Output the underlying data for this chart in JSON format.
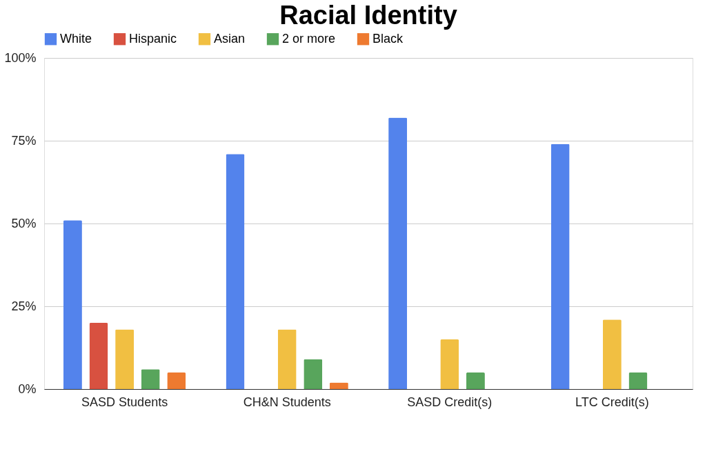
{
  "chart_data": {
    "type": "bar",
    "title": "Racial Identity",
    "categories": [
      "SASD Students",
      "CH&N Students",
      "SASD Credit(s)",
      "LTC Credit(s)"
    ],
    "series": [
      {
        "name": "White",
        "color": "#5383ec",
        "values": [
          51,
          71,
          82,
          74
        ]
      },
      {
        "name": "Hispanic",
        "color": "#d85140",
        "values": [
          20,
          null,
          null,
          null
        ]
      },
      {
        "name": "Asian",
        "color": "#f1bf42",
        "values": [
          18,
          18,
          15,
          21
        ]
      },
      {
        "name": "2 or more",
        "color": "#58a55c",
        "values": [
          6,
          9,
          5,
          5
        ]
      },
      {
        "name": "Black",
        "color": "#ee7a30",
        "values": [
          5,
          2,
          null,
          null
        ]
      }
    ],
    "ylim": [
      0,
      100
    ],
    "yticks": [
      {
        "value": 0,
        "label": "0%"
      },
      {
        "value": 25,
        "label": "25%"
      },
      {
        "value": 50,
        "label": "50%"
      },
      {
        "value": 75,
        "label": "75%"
      },
      {
        "value": 100,
        "label": "100%"
      }
    ],
    "grid": "y",
    "legend": "top"
  }
}
